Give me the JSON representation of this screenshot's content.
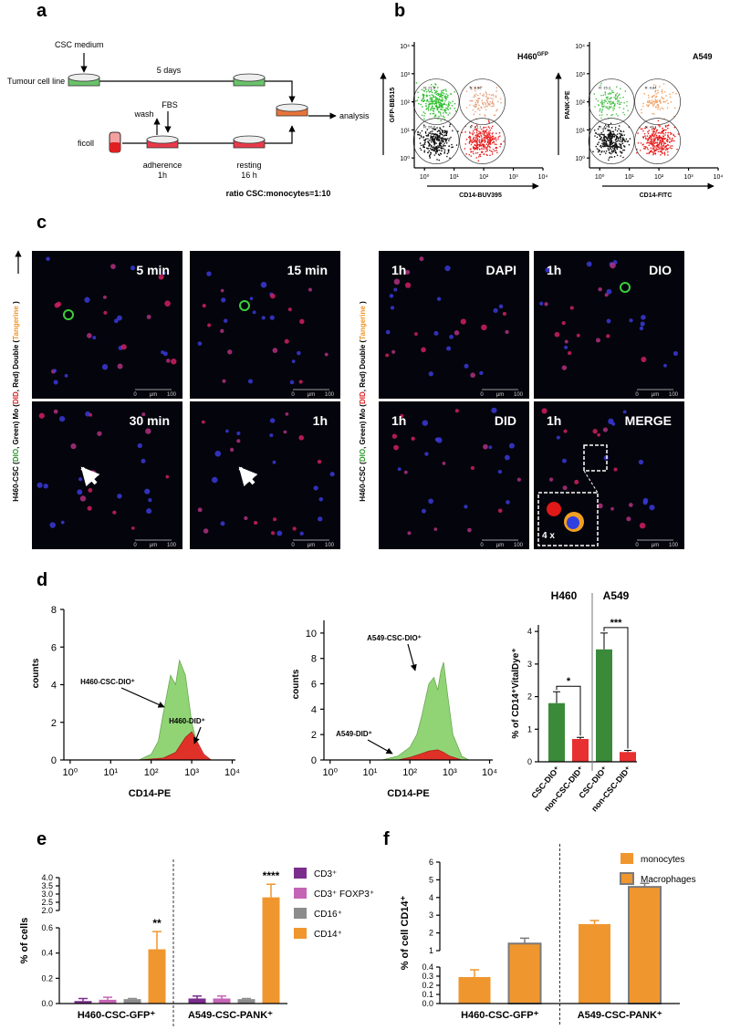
{
  "panel_labels": [
    "a",
    "b",
    "c",
    "d",
    "e",
    "f"
  ],
  "a": {
    "csc_medium": "CSC medium",
    "tumour": "Tumour cell line",
    "days": "5 days",
    "wash": "wash",
    "fbs": "FBS",
    "ficoll": "ficoll",
    "adherence": "adherence",
    "adherence_time": "1h",
    "resting": "resting",
    "resting_time": "16 h",
    "analysis": "analysis",
    "ratio": "ratio CSC:monocytes=1:10"
  },
  "b": {
    "lim": [
      0.6,
      10000
    ],
    "ticks": [
      {
        "value": 1,
        "label": "10⁰"
      },
      {
        "value": 10,
        "label": "10¹"
      },
      {
        "value": 100,
        "label": "10²"
      },
      {
        "value": 1000,
        "label": "10³"
      },
      {
        "value": 10000,
        "label": "10⁴"
      }
    ],
    "plots": [
      {
        "title": "H460",
        "title_sup": "GFP",
        "x_label": "CD14-BUV395",
        "y_label": "GFP-BB515",
        "gates": [
          "R: 21.6",
          "R: 0.56",
          "R: 56.8",
          "R: 21.1"
        ],
        "dot_colors": [
          "#2fbf2f",
          "#e8a27c",
          "#111111",
          "#e82020"
        ]
      },
      {
        "title": "A549",
        "x_label": "CD14-FITC",
        "y_label": "PANK-PE",
        "gates": [
          "R: 15.7",
          "R: 4.84",
          "R: 42",
          "R: 42.1"
        ],
        "dot_colors": [
          "#4cc24c",
          "#f0a060",
          "#111111",
          "#e82020"
        ]
      }
    ]
  },
  "c": {
    "images": [
      {
        "time": "5 min"
      },
      {
        "time": "15 min"
      },
      {
        "time": "1h",
        "channel": "DAPI"
      },
      {
        "time": "1h",
        "channel": "DIO"
      },
      {
        "time": "30 min"
      },
      {
        "time": "1h"
      },
      {
        "time": "1h",
        "channel": "DID"
      },
      {
        "time": "1h",
        "channel": "MERGE"
      }
    ],
    "scale_bar": {
      "start": "0",
      "unit": "μm",
      "end": "100"
    },
    "inset": "4 x",
    "side_label": [
      {
        "text": "H460-CSC (",
        "color": "#000000"
      },
      {
        "text": "DIO",
        "color": "#2a9a2a"
      },
      {
        "text": ", Green)     Mo (",
        "color": "#000000"
      },
      {
        "text": "DID",
        "color": "#e02020"
      },
      {
        "text": ", Red)     Double  (",
        "color": "#000000"
      },
      {
        "text": "Tangerine",
        "color": "#f0962e"
      },
      {
        "text": " )",
        "color": "#000000"
      }
    ]
  },
  "d": {
    "histograms": [
      {
        "x_label": "CD14-PE",
        "y_label": "counts",
        "xlim": [
          0.7,
          12000
        ],
        "xticks": [
          {
            "value": 1,
            "label": "10⁰"
          },
          {
            "value": 10,
            "label": "10¹"
          },
          {
            "value": 100,
            "label": "10²"
          },
          {
            "value": 1000,
            "label": "10³"
          },
          {
            "value": 10000,
            "label": "10⁴"
          }
        ],
        "ylim": [
          0,
          8
        ],
        "yticks": [
          0,
          2,
          4,
          6,
          8
        ],
        "series": [
          {
            "name": "H460-CSC-DIO⁺",
            "color": "#86d068",
            "x": [
              50,
              100,
              150,
              200,
              300,
              400,
              500,
              700,
              1000,
              1500,
              2000,
              3000
            ],
            "values": [
              0,
              0.3,
              1,
              2.5,
              4.5,
              4,
              5.3,
              4.5,
              2,
              0.5,
              0.1,
              0
            ]
          },
          {
            "name": "H460-DID⁺",
            "color": "#e82020",
            "x": [
              50,
              200,
              400,
              700,
              1000,
              1500,
              2000,
              3000
            ],
            "values": [
              0,
              0.1,
              0.4,
              1.2,
              1.5,
              0.8,
              0.3,
              0
            ]
          }
        ]
      },
      {
        "x_label": "CD14-PE",
        "y_label": "counts",
        "xlim": [
          0.7,
          12000
        ],
        "xticks": [
          {
            "value": 1,
            "label": "10⁰"
          },
          {
            "value": 10,
            "label": "10¹"
          },
          {
            "value": 100,
            "label": "10²"
          },
          {
            "value": 1000,
            "label": "10³"
          },
          {
            "value": 10000,
            "label": "10⁴"
          }
        ],
        "ylim": [
          0,
          11
        ],
        "yticks": [
          0,
          2,
          4,
          6,
          8,
          10
        ],
        "series": [
          {
            "name": "A549-CSC-DIO⁺",
            "color": "#86d068",
            "x": [
              20,
              50,
              100,
              150,
              200,
              300,
              400,
              500,
              600,
              700,
              900,
              1200,
              2000,
              3000
            ],
            "values": [
              0,
              0.3,
              1,
              2,
              3.5,
              6,
              6.5,
              5.5,
              7,
              7.7,
              5,
              2,
              0.3,
              0
            ]
          },
          {
            "name": "A549-DID⁺",
            "color": "#e82020",
            "x": [
              50,
              100,
              200,
              300,
              500,
              700,
              1000,
              2000
            ],
            "values": [
              0,
              0.2,
              0.5,
              0.7,
              0.8,
              0.6,
              0.3,
              0
            ]
          }
        ]
      }
    ],
    "bars": {
      "groups": [
        "H460",
        "A549"
      ],
      "categories": [
        "CSC-DIO⁺",
        "non-CSC-DID⁺",
        "CSC-DIO⁺",
        "non-CSC-DID⁺"
      ],
      "values": [
        1.8,
        0.7,
        3.45,
        0.3
      ],
      "errors": [
        0.35,
        0.05,
        0.5,
        0.05
      ],
      "colors": [
        "#3a8a3a",
        "#e83030",
        "#3a8a3a",
        "#e83030"
      ],
      "ylim": [
        0,
        4.2
      ],
      "yticks": [
        0,
        1,
        2,
        3,
        4
      ],
      "y_label": "% of CD14⁺VitalDye⁺",
      "significance": [
        "*",
        "***"
      ]
    }
  },
  "e": {
    "y_label": "% of cells",
    "groups": [
      "H460-CSC-GFP⁺",
      "A549-CSC-PANK⁺"
    ],
    "series": [
      {
        "name": "CD3⁺",
        "color": "#7b2d8e",
        "values": [
          0.02,
          0.04
        ],
        "errors": [
          0.02,
          0.02
        ]
      },
      {
        "name": "CD3⁺ FOXP3⁺",
        "color": "#c464b5",
        "values": [
          0.03,
          0.04
        ],
        "errors": [
          0.02,
          0.02
        ]
      },
      {
        "name": "CD16⁺",
        "color": "#8c8c8c",
        "values": [
          0.035,
          0.035
        ],
        "errors": [
          0.005,
          0.005
        ]
      },
      {
        "name": "CD14⁺",
        "color": "#f0962e",
        "values": [
          0.43,
          2.8
        ],
        "errors": [
          0.14,
          0.8
        ]
      }
    ],
    "ylim_lower": [
      0,
      0.6
    ],
    "yticks_lower": [
      {
        "value": 0,
        "label": "0.0"
      },
      0.2,
      0.4,
      0.6
    ],
    "ylim_upper": [
      2,
      4
    ],
    "yticks_upper": [
      {
        "value": 2,
        "label": "2.0"
      },
      2.5,
      {
        "value": 3,
        "label": "3.0"
      },
      3.5,
      {
        "value": 4,
        "label": "4.0"
      }
    ],
    "significance": [
      "**",
      "****"
    ]
  },
  "f": {
    "y_label": "% of cell CD14⁺",
    "groups": [
      "H460-CSC-GFP⁺",
      "A549-CSC-PANK⁺"
    ],
    "series": [
      {
        "name": "monocytes",
        "color": "#f0962e",
        "values": [
          0.29,
          2.5
        ],
        "errors": [
          0.08,
          0.2
        ]
      },
      {
        "name": "Macrophages",
        "color": "#f0962e",
        "stroke": "#7a7a7a",
        "values": [
          1.4,
          4.6
        ],
        "errors": [
          0.3,
          0.2
        ]
      }
    ],
    "ylim_lower": [
      0,
      0.4
    ],
    "yticks_lower": [
      {
        "value": 0,
        "label": "0.0"
      },
      0.1,
      0.2,
      0.3,
      0.4
    ],
    "ylim_upper": [
      1,
      6
    ],
    "yticks_upper": [
      1,
      2,
      3,
      4,
      5,
      6
    ]
  }
}
